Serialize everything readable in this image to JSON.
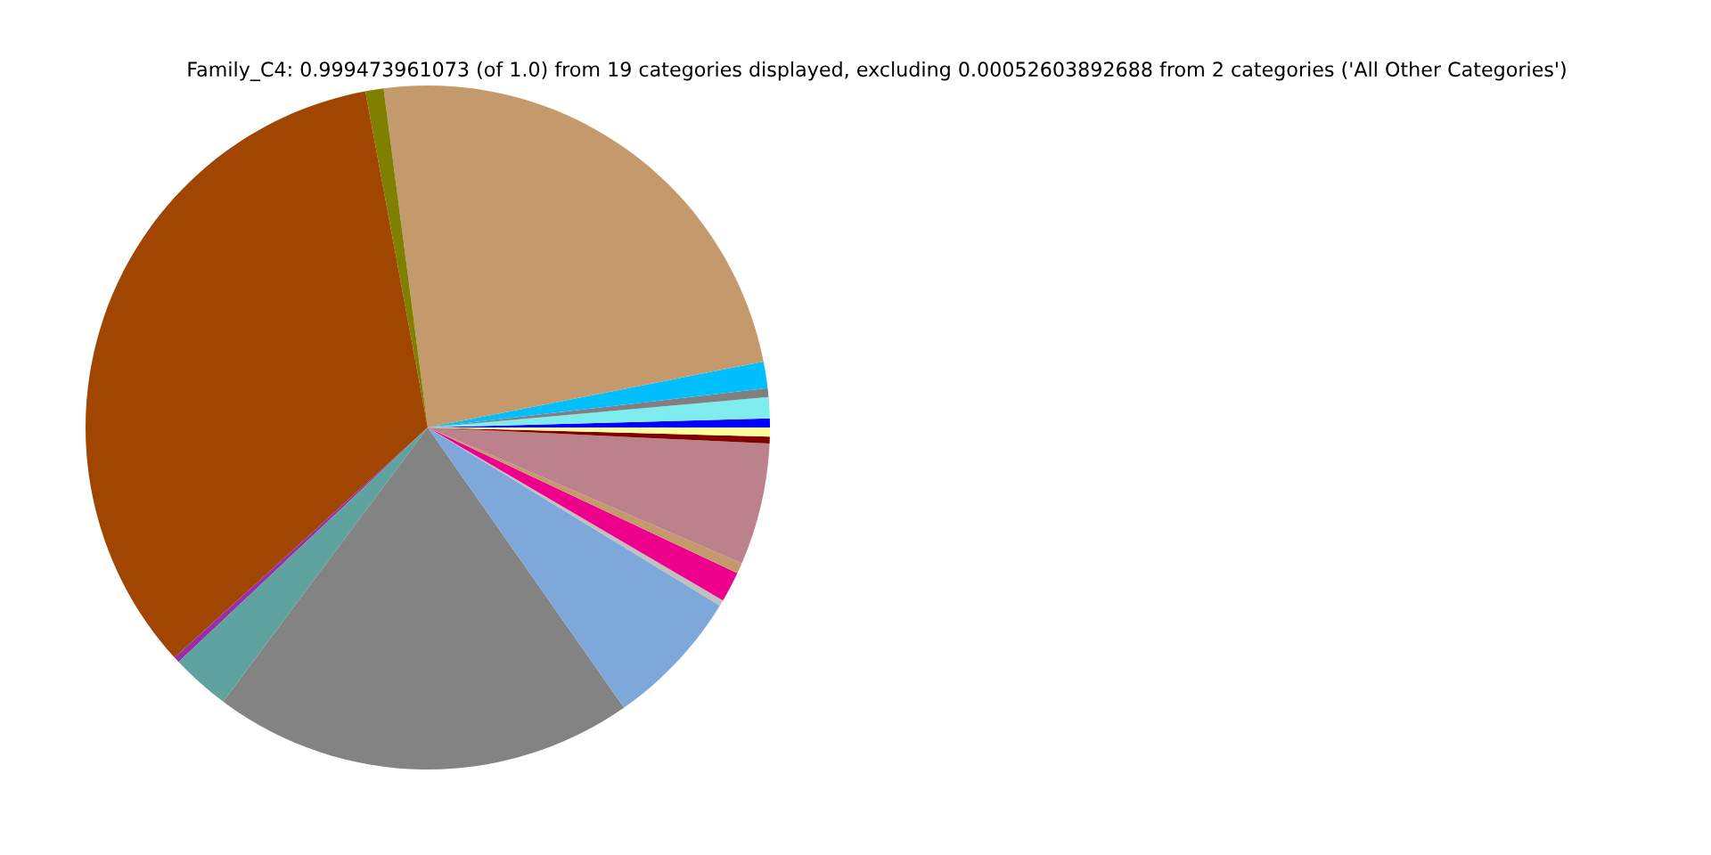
{
  "chart_data": {
    "type": "pie",
    "title": "Family_C4: 0.999473961073 (of 1.0) from 19 categories displayed, excluding 0.00052603892688 from 2 categories ('All Other Categories')",
    "categories": [
      null,
      null,
      null,
      null,
      null,
      null,
      null,
      null,
      null,
      null,
      null,
      null,
      null,
      null,
      null,
      null,
      null
    ],
    "values": [
      0.42,
      1.0,
      0.42,
      1.25,
      23.97,
      0.86,
      33.82,
      0.28,
      2.78,
      19.92,
      6.56,
      0.28,
      1.44,
      0.5,
      5.75,
      0.33,
      0.42
    ],
    "colors": [
      "#0000ff",
      "#7fecf0",
      "#808080",
      "#00bfff",
      "#c49a6c",
      "#808000",
      "#a14600",
      "#9a2ea6",
      "#5fa3a0",
      "#838383",
      "#7fa8da",
      "#c0c0c0",
      "#ec008c",
      "#c49a6c",
      "#bc828c",
      "#800000",
      "#ffff99"
    ]
  }
}
